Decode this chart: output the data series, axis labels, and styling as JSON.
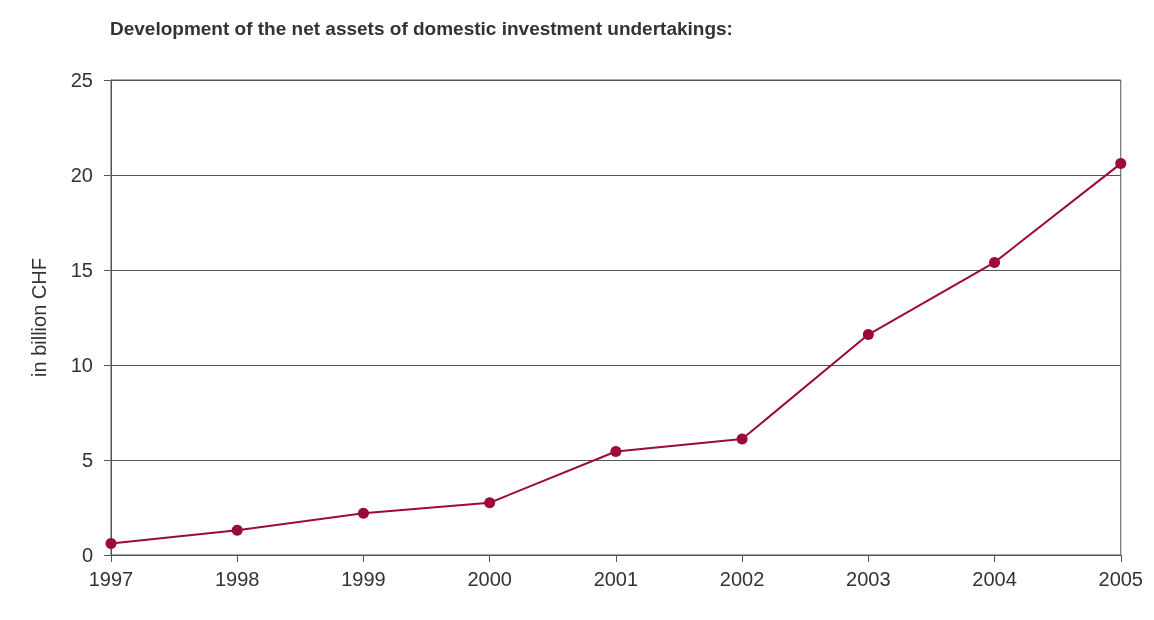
{
  "chart_data": {
    "type": "line",
    "title": "Development of the net assets of domestic investment undertakings:",
    "ylabel": "in billion CHF",
    "x": [
      1997,
      1998,
      1999,
      2000,
      2001,
      2002,
      2003,
      2004,
      2005
    ],
    "series": [
      {
        "color": "#9b0a3a",
        "values": [
          0.6,
          1.3,
          2.2,
          2.75,
          5.45,
          6.1,
          11.6,
          15.4,
          20.6
        ]
      }
    ],
    "xlim": [
      1997,
      2005
    ],
    "xticks": [
      1997,
      1998,
      1999,
      2000,
      2001,
      2002,
      2003,
      2004,
      2005
    ],
    "ylim": [
      0,
      25
    ],
    "yticks": [
      0,
      5,
      10,
      15,
      20,
      25
    ],
    "grid": "y",
    "marker": "circle",
    "line_style": "solid"
  }
}
